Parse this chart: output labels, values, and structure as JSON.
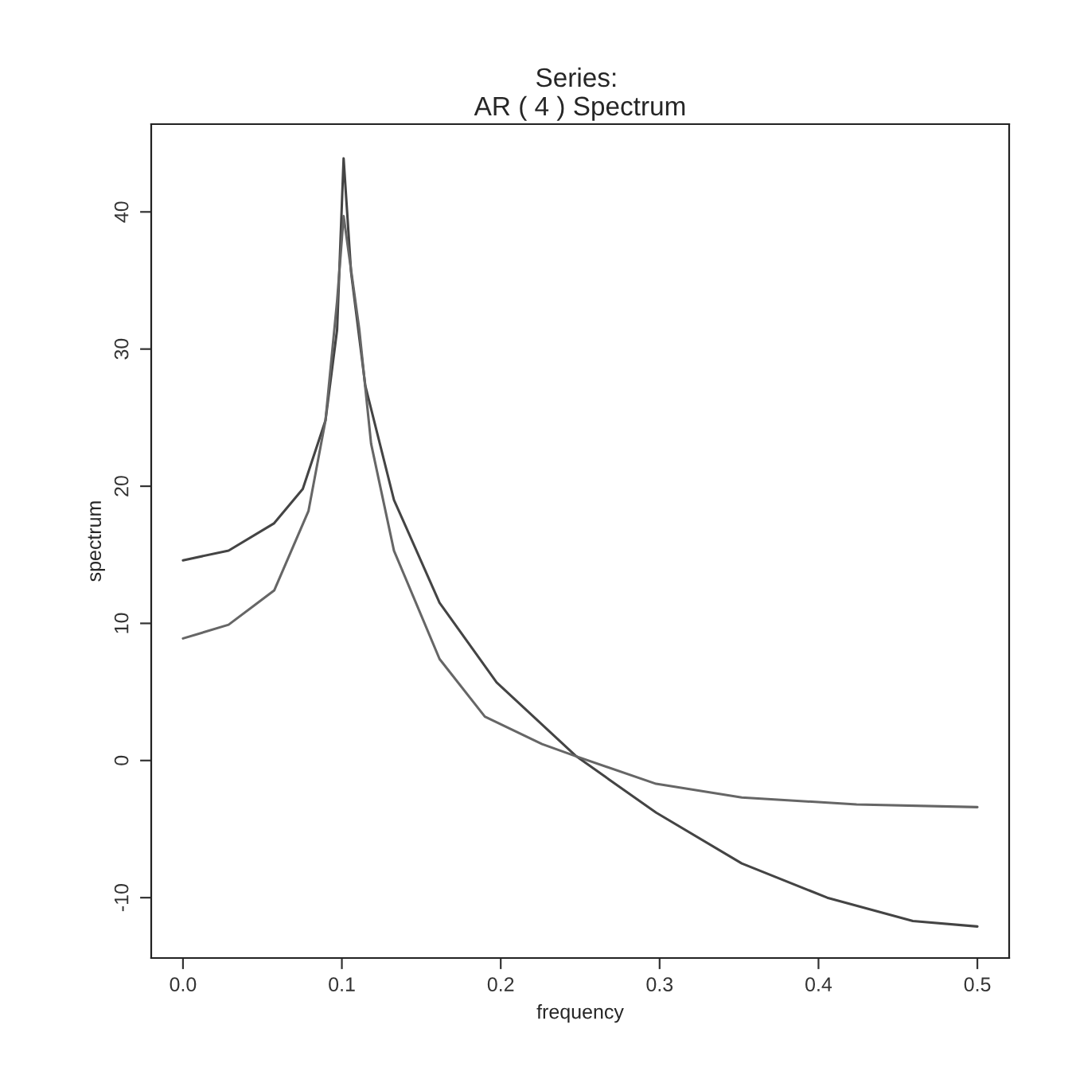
{
  "chart_data": {
    "type": "line",
    "title": "Series: \nAR ( 4 ) Spectrum",
    "xlabel": "frequency",
    "ylabel": "spectrum",
    "xlim": [
      -0.02,
      0.52
    ],
    "ylim": [
      -14.4,
      46.4
    ],
    "xticks": [
      {
        "value": 0,
        "label": "0.0"
      },
      0.1,
      0.2,
      0.3,
      0.4,
      0.5
    ],
    "yticks": [
      -10,
      0,
      10,
      20,
      30,
      40
    ],
    "grid": false,
    "marker": "none",
    "line_style": "solid",
    "series": [
      {
        "color": "#444444",
        "x": [
          0.0,
          0.0287,
          0.0574,
          0.0754,
          0.0897,
          0.097,
          0.1011,
          0.1058,
          0.1148,
          0.1328,
          0.1615,
          0.1974,
          0.2476,
          0.2978,
          0.3517,
          0.4055,
          0.4594,
          0.5
        ],
        "values": [
          14.6,
          15.3,
          17.3,
          19.8,
          24.8,
          31.4,
          43.9,
          35.6,
          27.3,
          19.0,
          11.5,
          5.7,
          0.3,
          -3.8,
          -7.5,
          -10.0,
          -11.7,
          -12.1
        ]
      },
      {
        "color": "#666666",
        "x": [
          0.0,
          0.0287,
          0.0574,
          0.079,
          0.0897,
          0.097,
          0.1011,
          0.111,
          0.1184,
          0.1328,
          0.1615,
          0.19,
          0.226,
          0.2476,
          0.2978,
          0.3517,
          0.424,
          0.5
        ],
        "values": [
          8.9,
          9.9,
          12.4,
          18.2,
          24.8,
          33.5,
          39.7,
          31.4,
          23.1,
          15.3,
          7.4,
          3.2,
          1.2,
          0.3,
          -1.7,
          -2.7,
          -3.2,
          -3.4
        ]
      }
    ]
  }
}
